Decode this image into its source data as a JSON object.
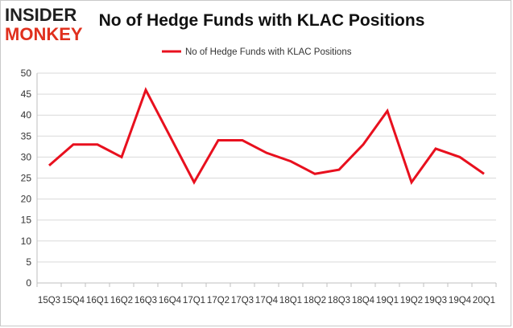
{
  "logo": {
    "line1": "INSIDER",
    "line2": "MONKEY"
  },
  "chart_data": {
    "type": "line",
    "title": "No of Hedge Funds with KLAC Positions",
    "xlabel": "",
    "ylabel": "",
    "ylim": [
      0,
      50
    ],
    "yticks": [
      0,
      5,
      10,
      15,
      20,
      25,
      30,
      35,
      40,
      45,
      50
    ],
    "grid": true,
    "legend": "top-center",
    "categories": [
      "15Q3",
      "15Q4",
      "16Q1",
      "16Q2",
      "16Q3",
      "16Q4",
      "17Q1",
      "17Q2",
      "17Q3",
      "17Q4",
      "18Q1",
      "18Q2",
      "18Q3",
      "18Q4",
      "19Q1",
      "19Q2",
      "19Q3",
      "19Q4",
      "20Q1"
    ],
    "series": [
      {
        "name": "No of Hedge Funds with KLAC Positions",
        "color": "#e8101e",
        "values": [
          28,
          33,
          33,
          30,
          46,
          35,
          24,
          34,
          34,
          31,
          29,
          26,
          27,
          33,
          41,
          24,
          32,
          30,
          26
        ]
      }
    ]
  }
}
